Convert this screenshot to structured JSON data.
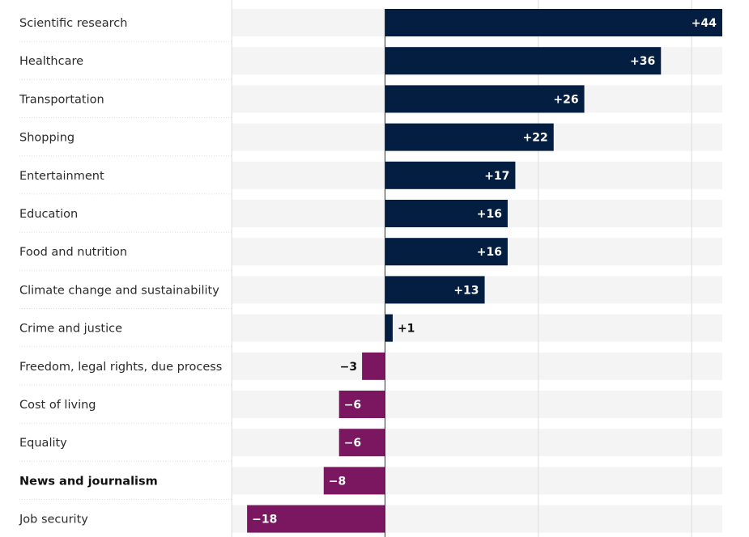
{
  "chart_data": {
    "type": "bar",
    "orientation": "horizontal",
    "categories": [
      "Scientific research",
      "Healthcare",
      "Transportation",
      "Shopping",
      "Entertainment",
      "Education",
      "Food and nutrition",
      "Climate change and sustainability",
      "Crime and justice",
      "Freedom, legal rights, due process",
      "Cost of living",
      "Equality",
      "News and journalism",
      "Job security"
    ],
    "values": [
      44,
      36,
      26,
      22,
      17,
      16,
      16,
      13,
      1,
      -3,
      -6,
      -6,
      -8,
      -18
    ],
    "value_labels": [
      "+44",
      "+36",
      "+26",
      "+22",
      "+17",
      "+16",
      "+16",
      "+13",
      "+1",
      "−3",
      "−6",
      "−6",
      "−8",
      "−18"
    ],
    "highlighted_category": "News and journalism",
    "xlim": [
      -20,
      44
    ],
    "grid": true,
    "legend": "none",
    "colors": {
      "positive": "#041e42",
      "negative": "#7b1660",
      "row_background": "#f4f4f4",
      "zero_line": "#333333",
      "gridline": "#dcdcdc",
      "separator": "#dddddd"
    }
  }
}
